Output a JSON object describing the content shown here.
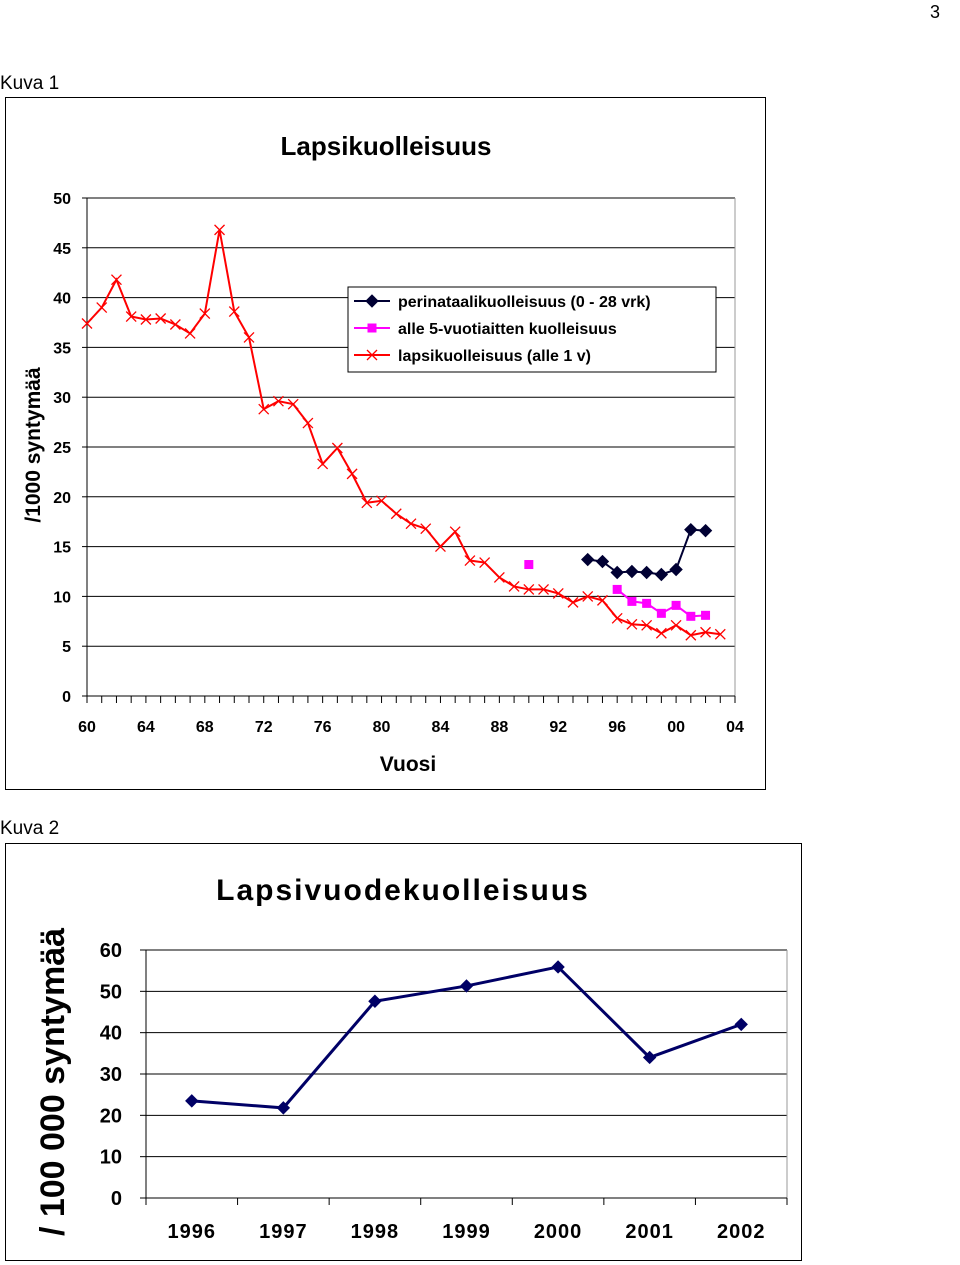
{
  "page_number": "3",
  "figures": [
    {
      "label": "Kuva 1"
    },
    {
      "label": "Kuva 2"
    }
  ],
  "chart_data": [
    {
      "type": "line",
      "title": "Lapsikuolleisuus",
      "xlabel": "Vuosi",
      "ylabel": "/1000 syntymää",
      "xlim": [
        1960,
        2004
      ],
      "ylim": [
        0,
        50
      ],
      "x_ticks": [
        1960,
        1964,
        1968,
        1972,
        1976,
        1980,
        1984,
        1988,
        1992,
        1996,
        2000,
        2004
      ],
      "x_tick_labels": [
        "60",
        "64",
        "68",
        "72",
        "76",
        "80",
        "84",
        "88",
        "92",
        "96",
        "00",
        "04"
      ],
      "y_ticks": [
        0,
        5,
        10,
        15,
        20,
        25,
        30,
        35,
        40,
        45,
        50
      ],
      "y_tick_labels": [
        "0",
        "5",
        "10",
        "15",
        "20",
        "25",
        "30",
        "35",
        "40",
        "45",
        "50"
      ],
      "grid": true,
      "legend_position": "top-right",
      "series": [
        {
          "name": "perinataalikuolleisuus (0 - 28 vrk)",
          "color": "#000033",
          "marker": "diamond",
          "x": [
            1994,
            1995,
            1996,
            1997,
            1998,
            1999,
            2000,
            2001,
            2002
          ],
          "y": [
            13.7,
            13.5,
            12.4,
            12.5,
            12.4,
            12.2,
            12.7,
            16.7,
            16.6
          ]
        },
        {
          "name": "alle 5-vuotiaitten kuolleisuus",
          "color": "#ff00ff",
          "marker": "square",
          "x": [
            1990,
            1996,
            1997,
            1998,
            1999,
            2000,
            2001,
            2002
          ],
          "y": [
            13.2,
            10.7,
            9.5,
            9.3,
            8.3,
            9.1,
            8.0,
            8.1
          ]
        },
        {
          "name": "lapsikuolleisuus (alle 1 v)",
          "color": "#ff0000",
          "marker": "x",
          "x": [
            1960,
            1961,
            1962,
            1963,
            1964,
            1965,
            1966,
            1967,
            1968,
            1969,
            1970,
            1971,
            1972,
            1973,
            1974,
            1975,
            1976,
            1977,
            1978,
            1979,
            1980,
            1981,
            1982,
            1983,
            1984,
            1985,
            1986,
            1987,
            1988,
            1989,
            1990,
            1991,
            1992,
            1993,
            1994,
            1995,
            1996,
            1997,
            1998,
            1999,
            2000,
            2001,
            2002,
            2003
          ],
          "y": [
            37.4,
            39.0,
            41.8,
            38.1,
            37.8,
            37.9,
            37.3,
            36.4,
            38.4,
            46.8,
            38.6,
            36.0,
            28.8,
            29.6,
            29.3,
            27.4,
            23.3,
            24.9,
            22.3,
            19.4,
            19.6,
            18.3,
            17.3,
            16.8,
            15.0,
            16.5,
            13.6,
            13.4,
            11.9,
            11.0,
            10.7,
            10.7,
            10.3,
            9.4,
            10.0,
            9.6,
            7.8,
            7.2,
            7.1,
            6.3,
            7.1,
            6.1,
            6.4,
            6.2
          ]
        }
      ]
    },
    {
      "type": "line",
      "title": "Lapsivuodekuolleisuus",
      "xlabel": "",
      "ylabel": "/ 100 000 syntymää",
      "categories": [
        "1996",
        "1997",
        "1998",
        "1999",
        "2000",
        "2001",
        "2002"
      ],
      "ylim": [
        0,
        60
      ],
      "y_ticks": [
        0,
        10,
        20,
        30,
        40,
        50,
        60
      ],
      "y_tick_labels": [
        "0",
        "10",
        "20",
        "30",
        "40",
        "50",
        "60"
      ],
      "grid": true,
      "series": [
        {
          "color": "#000066",
          "marker": "diamond",
          "values": [
            23.5,
            21.8,
            47.6,
            51.3,
            55.9,
            34.0,
            42.0
          ]
        }
      ]
    }
  ]
}
